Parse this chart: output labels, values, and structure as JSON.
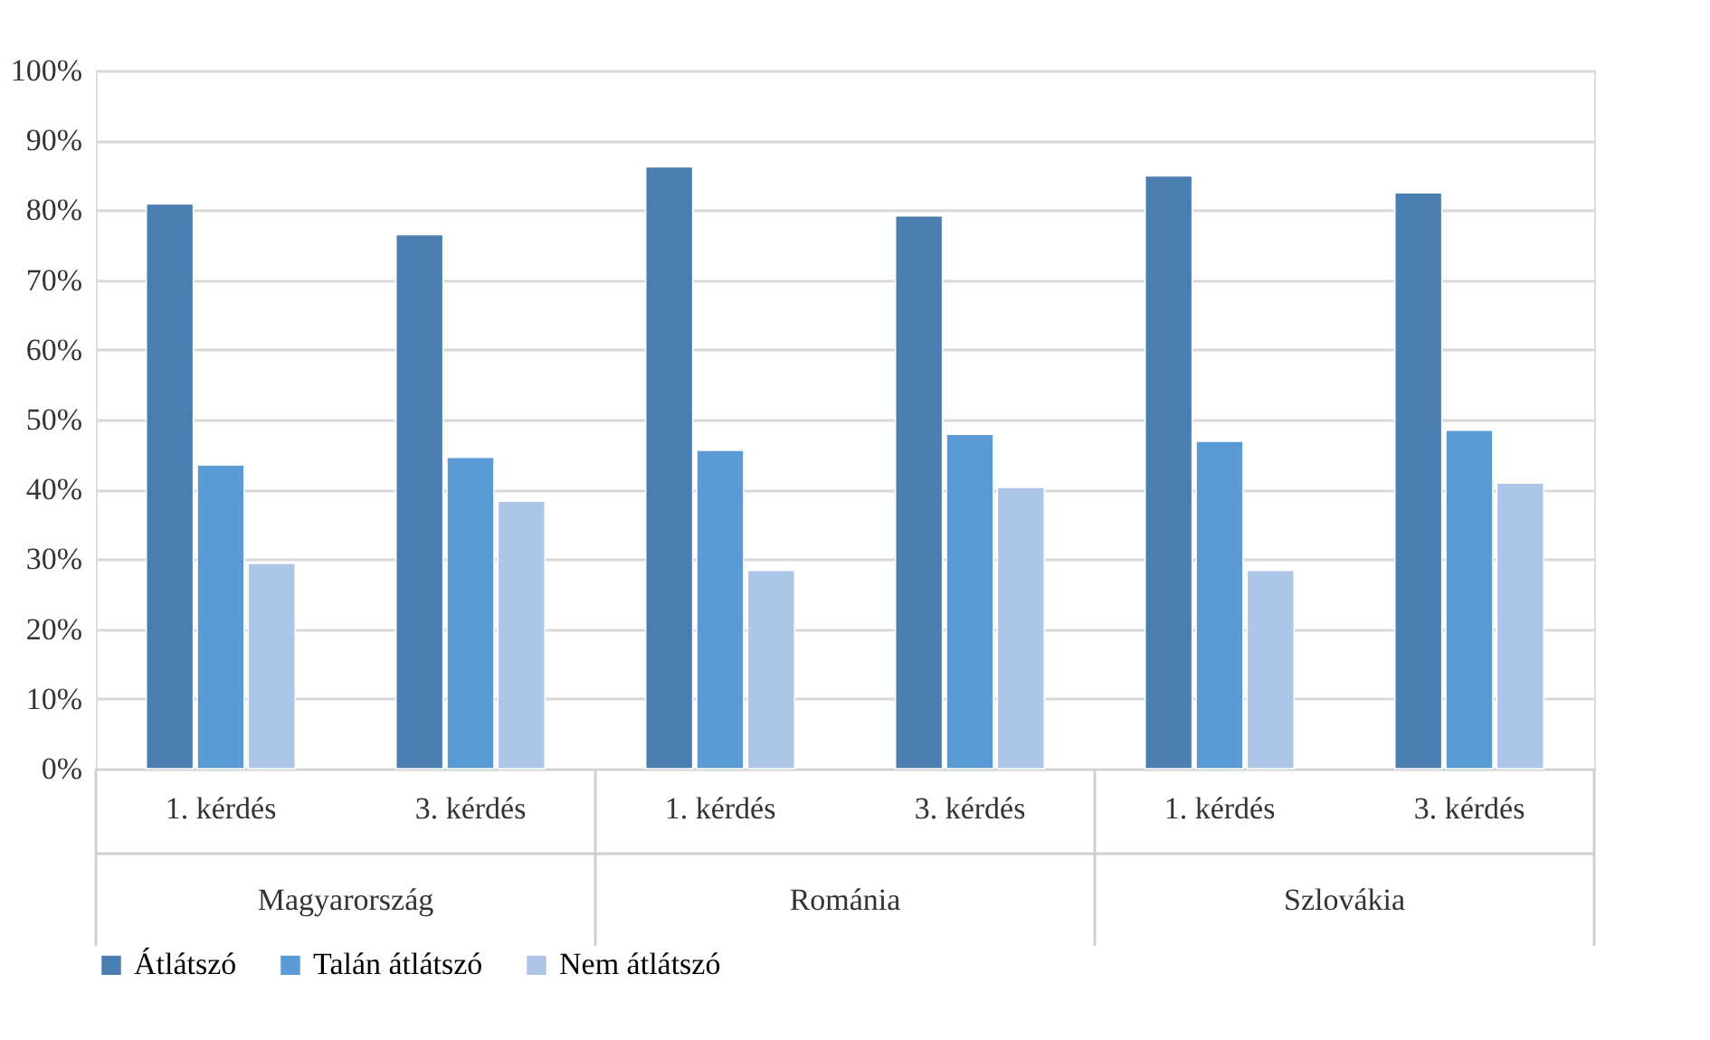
{
  "chart_data": {
    "type": "bar",
    "categories": [
      "1. kérdés",
      "3. kérdés",
      "1. kérdés",
      "3. kérdés",
      "1. kérdés",
      "3. kérdés"
    ],
    "series": [
      {
        "name": "Átlátszó",
        "color": "#4a7eb0",
        "values": [
          80.9,
          76.5,
          86.2,
          79.2,
          84.9,
          82.5
        ]
      },
      {
        "name": "Talán átlátszó",
        "color": "#5b9bd5",
        "values": [
          43.5,
          44.6,
          45.6,
          47.9,
          46.9,
          48.5
        ]
      },
      {
        "name": "Nem átlátszó",
        "color": "#adc5e6",
        "values": [
          29.4,
          38.3,
          28.4,
          40.3,
          28.4,
          40.9
        ]
      }
    ],
    "annotations": [
      "Magyarország",
      "Románia",
      "Szlovákia"
    ],
    "ylim": [
      0,
      100
    ],
    "yticks": [
      {
        "value": 0,
        "label": "0%"
      },
      {
        "value": 10,
        "label": "10%"
      },
      {
        "value": 20,
        "label": "20%"
      },
      {
        "value": 30,
        "label": "30%"
      },
      {
        "value": 40,
        "label": "40%"
      },
      {
        "value": 50,
        "label": "50%"
      },
      {
        "value": 60,
        "label": "60%"
      },
      {
        "value": 70,
        "label": "70%"
      },
      {
        "value": 80,
        "label": "80%"
      },
      {
        "value": 90,
        "label": "90%"
      },
      {
        "value": 100,
        "label": "100%"
      }
    ],
    "grid": "y",
    "legend": "bottom"
  }
}
